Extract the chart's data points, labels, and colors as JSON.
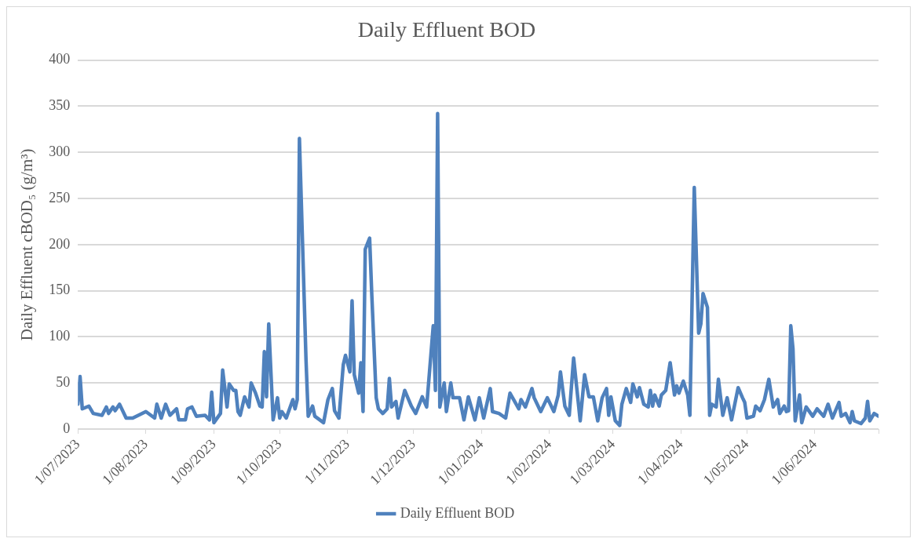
{
  "chart_data": {
    "type": "line",
    "title": "Daily Effluent BOD",
    "ylabel": "Daily Effluent cBOD₅ (g/m³)",
    "xlim": [
      "2023-07-01",
      "2024-06-30"
    ],
    "xticks": [
      {
        "value": "2023-07-01",
        "label": "1/07/2023"
      },
      {
        "value": "2023-08-01",
        "label": "1/08/2023"
      },
      {
        "value": "2023-09-01",
        "label": "1/09/2023"
      },
      {
        "value": "2023-10-01",
        "label": "1/10/2023"
      },
      {
        "value": "2023-11-01",
        "label": "1/11/2023"
      },
      {
        "value": "2023-12-01",
        "label": "1/12/2023"
      },
      {
        "value": "2024-01-01",
        "label": "1/01/2024"
      },
      {
        "value": "2024-02-01",
        "label": "1/02/2024"
      },
      {
        "value": "2024-03-01",
        "label": "1/03/2024"
      },
      {
        "value": "2024-04-01",
        "label": "1/04/2024"
      },
      {
        "value": "2024-05-01",
        "label": "1/05/2024"
      },
      {
        "value": "2024-06-01",
        "label": "1/06/2024"
      },
      {
        "value": "2024-06-30",
        "label": null
      }
    ],
    "ylim": [
      0,
      400
    ],
    "yticks": [
      0,
      50,
      100,
      150,
      200,
      250,
      300,
      350,
      400
    ],
    "grid": "y",
    "legend": "bottom",
    "marker": "none",
    "line_style": "solid",
    "series": [
      {
        "name": "Daily Effluent BOD",
        "color": "#4f81bd",
        "x": [
          "2023-07-01",
          "2023-07-02",
          "2023-07-03",
          "2023-07-06",
          "2023-07-08",
          "2023-07-12",
          "2023-07-14",
          "2023-07-15",
          "2023-07-17",
          "2023-07-18",
          "2023-07-20",
          "2023-07-23",
          "2023-07-26",
          "2023-08-01",
          "2023-08-05",
          "2023-08-06",
          "2023-08-08",
          "2023-08-10",
          "2023-08-12",
          "2023-08-15",
          "2023-08-16",
          "2023-08-19",
          "2023-08-20",
          "2023-08-22",
          "2023-08-24",
          "2023-08-28",
          "2023-08-30",
          "2023-08-31",
          "2023-09-01",
          "2023-09-04",
          "2023-09-05",
          "2023-09-07",
          "2023-09-08",
          "2023-09-10",
          "2023-09-11",
          "2023-09-12",
          "2023-09-13",
          "2023-09-15",
          "2023-09-17",
          "2023-09-18",
          "2023-09-20",
          "2023-09-22",
          "2023-09-23",
          "2023-09-24",
          "2023-09-25",
          "2023-09-26",
          "2023-09-28",
          "2023-09-30",
          "2023-10-01",
          "2023-10-02",
          "2023-10-04",
          "2023-10-07",
          "2023-10-08",
          "2023-10-09",
          "2023-10-10",
          "2023-10-13",
          "2023-10-14",
          "2023-10-16",
          "2023-10-17",
          "2023-10-21",
          "2023-10-23",
          "2023-10-25",
          "2023-10-26",
          "2023-10-28",
          "2023-10-30",
          "2023-10-31",
          "2023-11-02",
          "2023-11-03",
          "2023-11-04",
          "2023-11-06",
          "2023-11-07",
          "2023-11-08",
          "2023-11-09",
          "2023-11-11",
          "2023-11-12",
          "2023-11-14",
          "2023-11-15",
          "2023-11-17",
          "2023-11-19",
          "2023-11-20",
          "2023-11-21",
          "2023-11-23",
          "2023-11-24",
          "2023-11-27",
          "2023-11-30",
          "2023-12-02",
          "2023-12-05",
          "2023-12-07",
          "2023-12-10",
          "2023-12-11",
          "2023-12-12",
          "2023-12-13",
          "2023-12-15",
          "2023-12-16",
          "2023-12-18",
          "2023-12-19",
          "2023-12-22",
          "2023-12-24",
          "2023-12-26",
          "2023-12-29",
          "2023-12-31",
          "2024-01-02",
          "2024-01-05",
          "2024-01-06",
          "2024-01-09",
          "2024-01-12",
          "2024-01-14",
          "2024-01-18",
          "2024-01-19",
          "2024-01-21",
          "2024-01-24",
          "2024-01-25",
          "2024-01-28",
          "2024-01-31",
          "2024-02-03",
          "2024-02-05",
          "2024-02-06",
          "2024-02-08",
          "2024-02-10",
          "2024-02-12",
          "2024-02-15",
          "2024-02-17",
          "2024-02-19",
          "2024-02-21",
          "2024-02-23",
          "2024-02-25",
          "2024-02-27",
          "2024-02-28",
          "2024-02-29",
          "2024-03-02",
          "2024-03-04",
          "2024-03-05",
          "2024-03-07",
          "2024-03-09",
          "2024-03-10",
          "2024-03-12",
          "2024-03-13",
          "2024-03-15",
          "2024-03-17",
          "2024-03-18",
          "2024-03-19",
          "2024-03-20",
          "2024-03-22",
          "2024-03-23",
          "2024-03-25",
          "2024-03-27",
          "2024-03-29",
          "2024-03-30",
          "2024-03-31",
          "2024-04-02",
          "2024-04-04",
          "2024-04-05",
          "2024-04-07",
          "2024-04-09",
          "2024-04-10",
          "2024-04-11",
          "2024-04-13",
          "2024-04-14",
          "2024-04-15",
          "2024-04-17",
          "2024-04-18",
          "2024-04-20",
          "2024-04-22",
          "2024-04-24",
          "2024-04-27",
          "2024-04-29",
          "2024-04-30",
          "2024-05-01",
          "2024-05-04",
          "2024-05-05",
          "2024-05-07",
          "2024-05-09",
          "2024-05-11",
          "2024-05-13",
          "2024-05-15",
          "2024-05-16",
          "2024-05-18",
          "2024-05-19",
          "2024-05-20",
          "2024-05-21",
          "2024-05-22",
          "2024-05-23",
          "2024-05-25",
          "2024-05-26",
          "2024-05-28",
          "2024-05-31",
          "2024-06-02",
          "2024-06-05",
          "2024-06-07",
          "2024-06-09",
          "2024-06-12",
          "2024-06-13",
          "2024-06-15",
          "2024-06-17",
          "2024-06-18",
          "2024-06-19",
          "2024-06-22",
          "2024-06-24",
          "2024-06-25",
          "2024-06-26",
          "2024-06-28",
          "2024-06-30"
        ],
        "values": [
          27,
          57,
          22,
          25,
          17,
          15,
          24,
          17,
          24,
          20,
          27,
          12,
          12,
          19,
          12,
          27,
          12,
          27,
          15,
          22,
          10,
          10,
          22,
          24,
          14,
          15,
          10,
          40,
          7,
          17,
          64,
          24,
          49,
          42,
          42,
          19,
          15,
          35,
          24,
          50,
          39,
          25,
          24,
          84,
          35,
          114,
          10,
          34,
          12,
          19,
          12,
          32,
          22,
          32,
          315,
          75,
          14,
          25,
          14,
          7,
          32,
          44,
          20,
          12,
          70,
          80,
          62,
          139,
          59,
          39,
          72,
          19,
          195,
          207,
          145,
          34,
          22,
          17,
          22,
          55,
          24,
          30,
          12,
          42,
          25,
          17,
          35,
          24,
          112,
          42,
          342,
          24,
          50,
          19,
          50,
          34,
          34,
          10,
          35,
          10,
          34,
          12,
          44,
          19,
          17,
          12,
          39,
          22,
          32,
          24,
          44,
          34,
          19,
          34,
          19,
          37,
          62,
          25,
          15,
          77,
          9,
          59,
          35,
          35,
          9,
          34,
          44,
          15,
          35,
          9,
          4,
          27,
          44,
          29,
          49,
          35,
          45,
          27,
          24,
          42,
          25,
          37,
          25,
          37,
          42,
          72,
          37,
          47,
          39,
          52,
          37,
          15,
          262,
          104,
          114,
          147,
          132,
          15,
          27,
          24,
          54,
          15,
          34,
          10,
          45,
          34,
          29,
          12,
          14,
          25,
          20,
          32,
          54,
          24,
          32,
          17,
          25,
          19,
          20,
          112,
          87,
          9,
          37,
          7,
          24,
          14,
          22,
          14,
          27,
          12,
          29,
          14,
          17,
          7,
          19,
          9,
          6,
          12,
          30,
          9,
          17,
          14
        ]
      }
    ]
  }
}
